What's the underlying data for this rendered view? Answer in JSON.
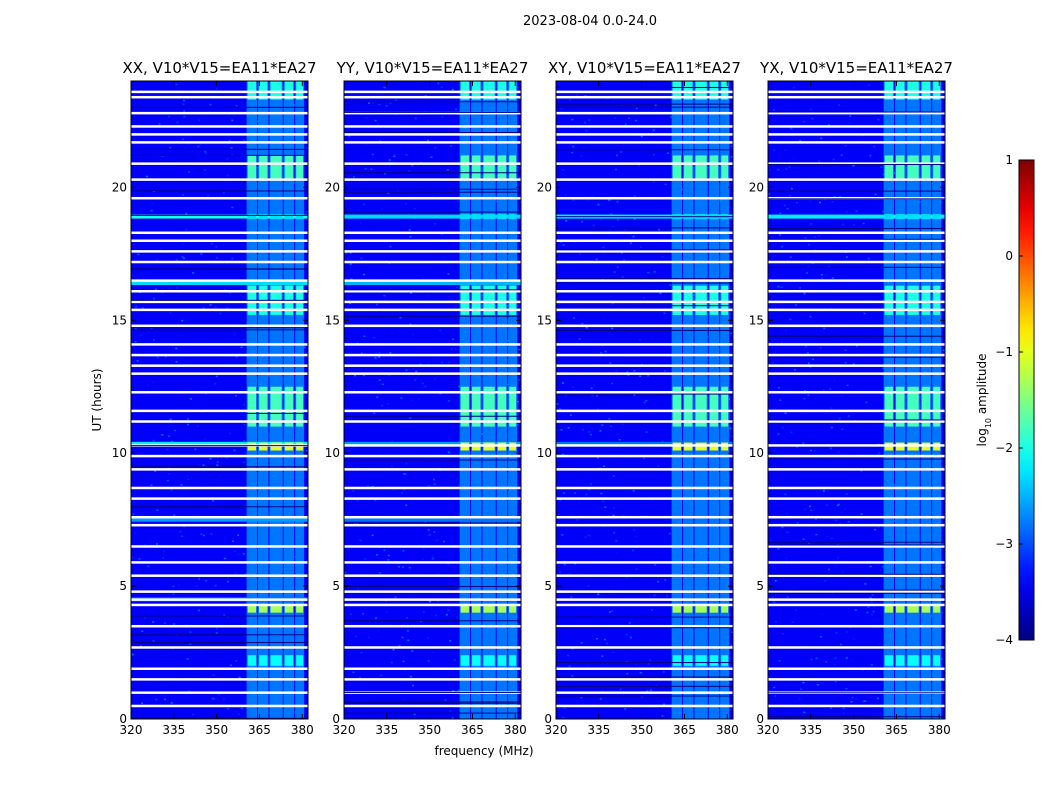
{
  "figure": {
    "suptitle": "2023-08-04 0.0-24.0",
    "xlabel": "frequency (MHz)",
    "ylabel": "UT (hours)",
    "colorbar_label": "amplitude",
    "colorbar_label_prefix": "log",
    "colorbar_label_sub": "10",
    "colormap": "jet"
  },
  "chart_data": {
    "type": "heatmap",
    "title": "2023-08-04 0.0-24.0",
    "xlabel": "frequency (MHz)",
    "ylabel": "UT (hours)",
    "xlim": [
      320,
      382
    ],
    "ylim": [
      0,
      24
    ],
    "x_ticks": [
      320,
      335,
      350,
      365,
      380
    ],
    "y_ticks": [
      0,
      5,
      10,
      15,
      20
    ],
    "x_tick_labels": [
      "320",
      "335",
      "350",
      "365",
      "380"
    ],
    "y_tick_labels": [
      "0",
      "5",
      "10",
      "15",
      "20"
    ],
    "colorbar": {
      "label": "log10 amplitude",
      "range": [
        -4,
        1
      ],
      "ticks": [
        -4,
        -3,
        -2,
        -1,
        0,
        1
      ],
      "tick_labels": [
        "−4",
        "−3",
        "−2",
        "−1",
        "0",
        "1"
      ]
    },
    "background_level": -3.4,
    "rfi_bands_mhz": [
      [
        360.5,
        364.5
      ],
      [
        364.5,
        368.5
      ],
      [
        368.5,
        373.5
      ],
      [
        373.5,
        377.5
      ],
      [
        377.5,
        381.0
      ]
    ],
    "flagged_rows_hours": [
      0.5,
      1.0,
      1.5,
      1.9,
      2.7,
      3.5,
      4.3,
      4.5,
      4.8,
      5.4,
      5.9,
      6.5,
      7.3,
      7.6,
      8.3,
      8.7,
      9.4,
      9.9,
      10.3,
      11.2,
      11.6,
      12.3,
      13.0,
      13.3,
      13.7,
      14.1,
      14.8,
      15.4,
      15.7,
      16.1,
      16.5,
      17.2,
      17.6,
      18.0,
      18.3,
      19.6,
      20.3,
      20.9,
      21.7,
      22.0,
      22.3,
      22.8,
      23.4,
      23.6
    ],
    "bright_events": [
      {
        "t_start": 10.1,
        "t_end": 10.4,
        "level": -1.0
      },
      {
        "t_start": 4.0,
        "t_end": 4.3,
        "level": -1.3
      },
      {
        "t_start": 11.0,
        "t_end": 12.5,
        "level": -1.8
      },
      {
        "t_start": 20.3,
        "t_end": 21.2,
        "level": -1.8
      },
      {
        "t_start": 15.2,
        "t_end": 16.3,
        "level": -2.0
      },
      {
        "t_start": 2.0,
        "t_end": 2.4,
        "level": -2.1
      },
      {
        "t_start": 18.8,
        "t_end": 19.0,
        "level": -2.3
      },
      {
        "t_start": 23.3,
        "t_end": 24.0,
        "level": -2.0
      }
    ],
    "panels": [
      {
        "title": "XX, V10*V15=EA11*EA27",
        "broadband_rows": [
          {
            "t": 16.4,
            "level": -2.3
          },
          {
            "t": 10.35,
            "level": -2.2
          },
          {
            "t": 7.5,
            "level": -2.6
          },
          {
            "t": 4.5,
            "level": -2.8
          },
          {
            "t": 18.9,
            "level": -2.0
          }
        ]
      },
      {
        "title": "YY, V10*V15=EA11*EA27",
        "broadband_rows": [
          {
            "t": 16.4,
            "level": -2.5
          },
          {
            "t": 10.35,
            "level": -2.6
          },
          {
            "t": 7.5,
            "level": -2.8
          },
          {
            "t": 18.9,
            "level": -2.3
          }
        ]
      },
      {
        "title": "XY, V10*V15=EA11*EA27",
        "broadband_rows": [
          {
            "t": 18.9,
            "level": -2.2
          },
          {
            "t": 10.35,
            "level": -2.8
          }
        ]
      },
      {
        "title": "YX, V10*V15=EA11*EA27",
        "broadband_rows": [
          {
            "t": 18.9,
            "level": -2.2
          }
        ]
      }
    ]
  }
}
